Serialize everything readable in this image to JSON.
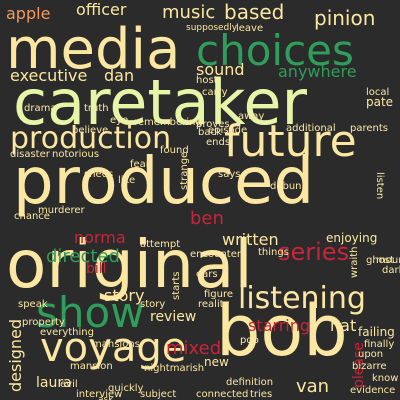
{
  "colors": {
    "background": "#2b2b2b",
    "light_yellow": "#fbe7a1",
    "pale_green": "#e6f5a8",
    "green": "#2f9e5a",
    "red": "#c7253a",
    "orange": "#f39a5b",
    "tan": "#f6c57a",
    "light_green": "#b7e07a"
  },
  "words": [
    "media",
    "caretaker",
    "produced",
    "original",
    "bob",
    "choices",
    "future",
    "voyage",
    "show",
    "production",
    "listening",
    "series",
    "music",
    "based",
    "pinion",
    "apple",
    "officer",
    "executive",
    "dan",
    "sound",
    "anywhere",
    "pate",
    "norma",
    "ben",
    "written",
    "enjoying",
    "directed",
    "bill",
    "story",
    "review",
    "starring",
    "nat",
    "mixed",
    "designed",
    "laura",
    "van",
    "please",
    "like",
    "drama",
    "mansion",
    "encounter",
    "ghost",
    "evil",
    "nightmarish",
    "definition",
    "failing",
    "bizarre",
    "know",
    "upon",
    "evidence",
    "interview",
    "carry",
    "leave",
    "supposedly",
    "host",
    "disaster",
    "notorious",
    "parents",
    "additional",
    "murderer",
    "chance",
    "property",
    "everything",
    "speak",
    "things",
    "back",
    "ends",
    "found",
    "says",
    "debunk",
    "listen",
    "attempt",
    "starts",
    "ears",
    "connected",
    "tries",
    "quickly",
    "subject",
    "episode",
    "truth",
    "local",
    "proves",
    "mount",
    "finally",
    "dark",
    "wraith",
    "sheds",
    "strange",
    "remembering",
    "believe",
    "eye",
    "pop",
    "figure",
    "reality",
    "mansions",
    "away",
    "fear",
    "new",
    "ask",
    "story"
  ]
}
